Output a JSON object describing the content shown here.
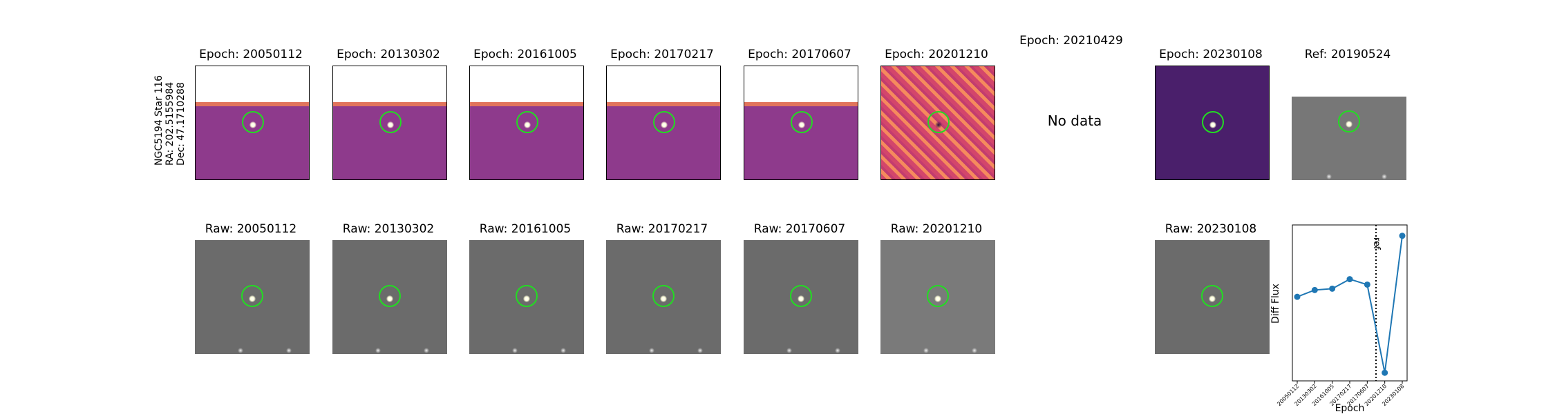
{
  "row_label": "NGC5194 Star 116\nRA: 202.5155984\nDec: 47.1710288",
  "diff_titles": [
    "Epoch: 20050112",
    "Epoch: 20130302",
    "Epoch: 20161005",
    "Epoch: 20170217",
    "Epoch: 20170607",
    "Epoch: 20201210"
  ],
  "missing_epoch_title": "Epoch: 20210429",
  "no_data_text": "No data",
  "last_diff_title": "Epoch: 20230108",
  "ref_title": "Ref: 20190524",
  "raw_titles": [
    "Raw: 20050112",
    "Raw: 20130302",
    "Raw: 20161005",
    "Raw: 20170217",
    "Raw: 20170607",
    "Raw: 20201210",
    "Raw: 20230108"
  ],
  "colors": {
    "circle": "#22dd22",
    "line": "#1f77b4",
    "diff_cmap": "magma",
    "raw_cmap": "gray"
  },
  "chart_data": {
    "type": "line",
    "x": [
      "20050112",
      "20130302",
      "20161005",
      "20170217",
      "20170607",
      "20201210",
      "20230108"
    ],
    "values": [
      0.52,
      0.57,
      0.58,
      0.65,
      0.61,
      -0.04,
      0.97
    ],
    "ylim": [
      -0.1,
      1.05
    ],
    "xlabel": "Epoch",
    "ylabel": "Diff Flux",
    "ref_line": {
      "label": "ref",
      "x_between": [
        "20170607",
        "20201210"
      ],
      "style": "dotted"
    }
  }
}
